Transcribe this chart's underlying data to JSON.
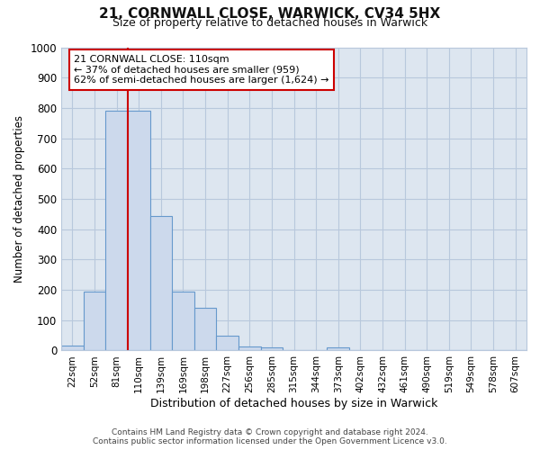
{
  "title": "21, CORNWALL CLOSE, WARWICK, CV34 5HX",
  "subtitle": "Size of property relative to detached houses in Warwick",
  "xlabel": "Distribution of detached houses by size in Warwick",
  "ylabel": "Number of detached properties",
  "bin_labels": [
    "22sqm",
    "52sqm",
    "81sqm",
    "110sqm",
    "139sqm",
    "169sqm",
    "198sqm",
    "227sqm",
    "256sqm",
    "285sqm",
    "315sqm",
    "344sqm",
    "373sqm",
    "402sqm",
    "432sqm",
    "461sqm",
    "490sqm",
    "519sqm",
    "549sqm",
    "578sqm",
    "607sqm"
  ],
  "bar_values": [
    15,
    195,
    790,
    790,
    445,
    195,
    140,
    50,
    13,
    10,
    0,
    0,
    10,
    0,
    0,
    0,
    0,
    0,
    0,
    0,
    0
  ],
  "bar_color": "#ccd9ec",
  "bar_edge_color": "#6699cc",
  "vline_x": 2.5,
  "vline_color": "#cc0000",
  "annotation_text": "21 CORNWALL CLOSE: 110sqm\n← 37% of detached houses are smaller (959)\n62% of semi-detached houses are larger (1,624) →",
  "annotation_box_color": "#ffffff",
  "annotation_box_edge": "#cc0000",
  "ylim": [
    0,
    1000
  ],
  "yticks": [
    0,
    100,
    200,
    300,
    400,
    500,
    600,
    700,
    800,
    900,
    1000
  ],
  "grid_color": "#b8c8dc",
  "axes_background": "#dde6f0",
  "figure_background": "#ffffff",
  "footer": "Contains HM Land Registry data © Crown copyright and database right 2024.\nContains public sector information licensed under the Open Government Licence v3.0."
}
